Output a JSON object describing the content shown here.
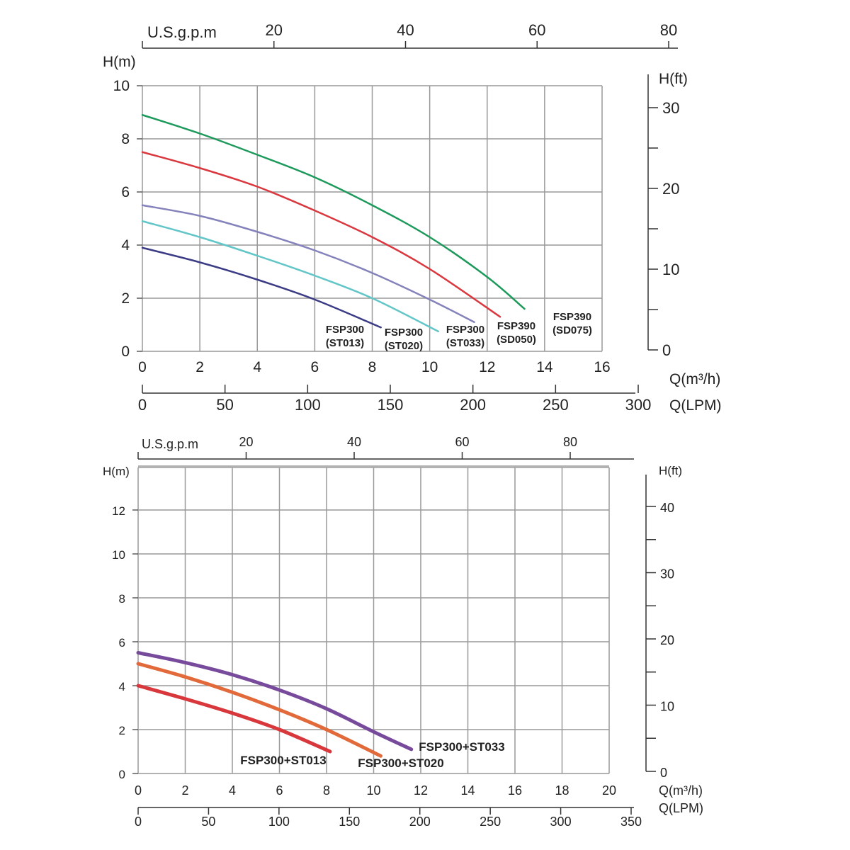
{
  "chart_data": [
    {
      "type": "line",
      "xlabel": "Q(m³/h)",
      "ylabel": "H(m)",
      "xlim": [
        0,
        16
      ],
      "ylim": [
        0,
        10
      ],
      "x_ticks": [
        0,
        2,
        4,
        6,
        8,
        10,
        12,
        14,
        16
      ],
      "y_ticks": [
        0,
        2,
        4,
        6,
        8,
        10
      ],
      "grid": true,
      "secondary_axes": {
        "top": {
          "label": "U.S.g.p.m",
          "ticks": [
            20,
            40,
            60,
            80
          ],
          "range": [
            0,
            80
          ]
        },
        "right": {
          "label": "H(ft)",
          "ticks": [
            0,
            10,
            20,
            30
          ],
          "range": [
            0,
            32.8
          ]
        },
        "bottom2": {
          "label": "Q(LPM)",
          "ticks": [
            0,
            50,
            100,
            150,
            200,
            250,
            300
          ],
          "range": [
            0,
            300
          ]
        }
      },
      "series": [
        {
          "name": "FSP300 (ST013)",
          "label_lines": [
            "FSP300",
            "(ST013)"
          ],
          "color": "#3b3b86",
          "x": [
            0,
            2,
            4,
            6,
            8.3
          ],
          "y": [
            3.9,
            3.35,
            2.7,
            1.95,
            0.9
          ]
        },
        {
          "name": "FSP300 (ST020)",
          "label_lines": [
            "FSP300",
            "(ST020)"
          ],
          "color": "#62c6c8",
          "x": [
            0,
            2,
            4,
            6,
            8,
            10.3
          ],
          "y": [
            4.9,
            4.3,
            3.6,
            2.85,
            2.0,
            0.75
          ]
        },
        {
          "name": "FSP300 (ST033)",
          "label_lines": [
            "FSP300",
            "(ST033)"
          ],
          "color": "#8482bb",
          "x": [
            0,
            2,
            4,
            6,
            8,
            10,
            11.55
          ],
          "y": [
            5.5,
            5.1,
            4.5,
            3.8,
            2.95,
            1.95,
            1.1
          ]
        },
        {
          "name": "FSP390 (SD050)",
          "label_lines": [
            "FSP390",
            "(SD050)"
          ],
          "color": "#d9383f",
          "x": [
            0,
            2,
            4,
            6,
            8,
            10,
            12.45
          ],
          "y": [
            7.5,
            6.9,
            6.2,
            5.3,
            4.3,
            3.1,
            1.3
          ]
        },
        {
          "name": "FSP390 (SD075)",
          "label_lines": [
            "FSP390",
            "(SD075)"
          ],
          "color": "#1d9a5b",
          "x": [
            0,
            2,
            4,
            6,
            8,
            10,
            12,
            13.3
          ],
          "y": [
            8.9,
            8.2,
            7.4,
            6.55,
            5.5,
            4.3,
            2.8,
            1.6
          ]
        }
      ]
    },
    {
      "type": "line",
      "xlabel": "Q(m³/h)",
      "ylabel": "H(m)",
      "xlim": [
        0,
        20
      ],
      "ylim": [
        0,
        14
      ],
      "x_ticks": [
        0,
        2,
        4,
        6,
        8,
        10,
        12,
        14,
        16,
        18,
        20
      ],
      "y_ticks": [
        0,
        2,
        4,
        6,
        8,
        10,
        12
      ],
      "grid": true,
      "secondary_axes": {
        "top": {
          "label": "U.S.g.p.m",
          "ticks": [
            20,
            40,
            60,
            80
          ],
          "range": [
            0,
            92
          ]
        },
        "right": {
          "label": "H(ft)",
          "ticks": [
            0,
            10,
            20,
            30,
            40
          ],
          "range": [
            0,
            45
          ]
        },
        "bottom2": {
          "label": "Q(LPM)",
          "ticks": [
            0,
            50,
            100,
            150,
            200,
            250,
            300,
            350
          ],
          "range": [
            0,
            350
          ]
        }
      },
      "series": [
        {
          "name": "FSP300+ST013",
          "label_lines": [
            "FSP300+ST013"
          ],
          "color": "#d8373b",
          "x": [
            0,
            2,
            4,
            6,
            8.15
          ],
          "y": [
            4.0,
            3.4,
            2.75,
            2.0,
            1.0
          ]
        },
        {
          "name": "FSP300+ST020",
          "label_lines": [
            "FSP300+ST020"
          ],
          "color": "#e1693a",
          "x": [
            0,
            2,
            4,
            6,
            8,
            10.3
          ],
          "y": [
            5.0,
            4.4,
            3.7,
            2.9,
            2.0,
            0.8
          ]
        },
        {
          "name": "FSP300+ST033",
          "label_lines": [
            "FSP300+ST033"
          ],
          "color": "#774a9c",
          "x": [
            0,
            2,
            4,
            6,
            8,
            10,
            11.6
          ],
          "y": [
            5.5,
            5.05,
            4.5,
            3.8,
            2.95,
            1.9,
            1.1
          ]
        }
      ]
    }
  ]
}
